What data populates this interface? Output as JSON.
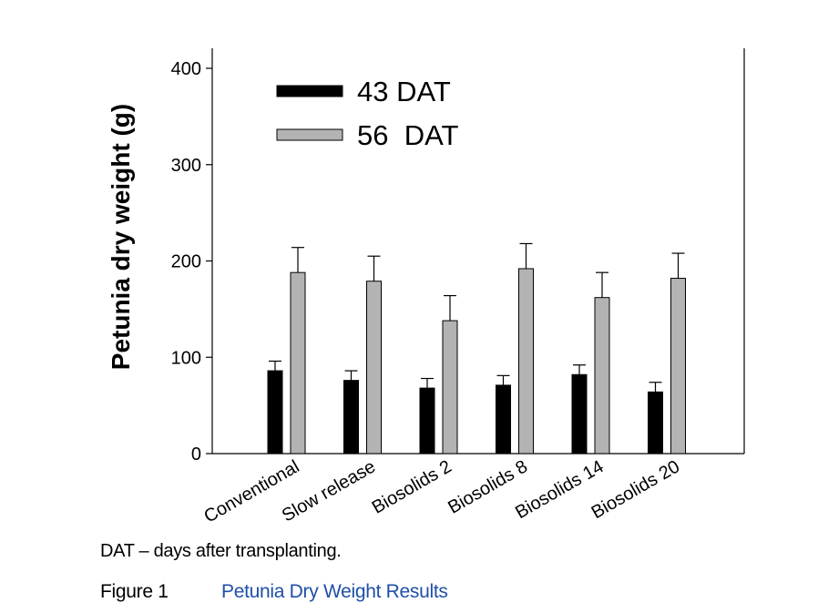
{
  "chart_data": {
    "type": "bar",
    "title": "",
    "xlabel": "",
    "ylabel": "Petunia dry weight  (g)",
    "ylim": [
      0,
      400
    ],
    "yticks": [
      0,
      100,
      200,
      300,
      400
    ],
    "categories": [
      "Conventional",
      "Slow release",
      "Biosolids 2",
      "Biosolids 8",
      "Biosolids 14",
      "Biosolids 20"
    ],
    "series": [
      {
        "name": "43 DAT",
        "color": "#000000",
        "values": [
          86,
          76,
          68,
          71,
          82,
          64
        ],
        "errors": [
          10,
          10,
          10,
          10,
          10,
          10
        ]
      },
      {
        "name": "56  DAT",
        "color": "#b3b3b3",
        "values": [
          188,
          179,
          138,
          192,
          162,
          182
        ],
        "errors": [
          26,
          26,
          26,
          26,
          26,
          26
        ]
      }
    ],
    "legend_position": "top-left",
    "grid": false
  },
  "footnote": "DAT – days after transplanting.",
  "caption": {
    "label": "Figure 1",
    "title": "Petunia Dry Weight Results"
  }
}
